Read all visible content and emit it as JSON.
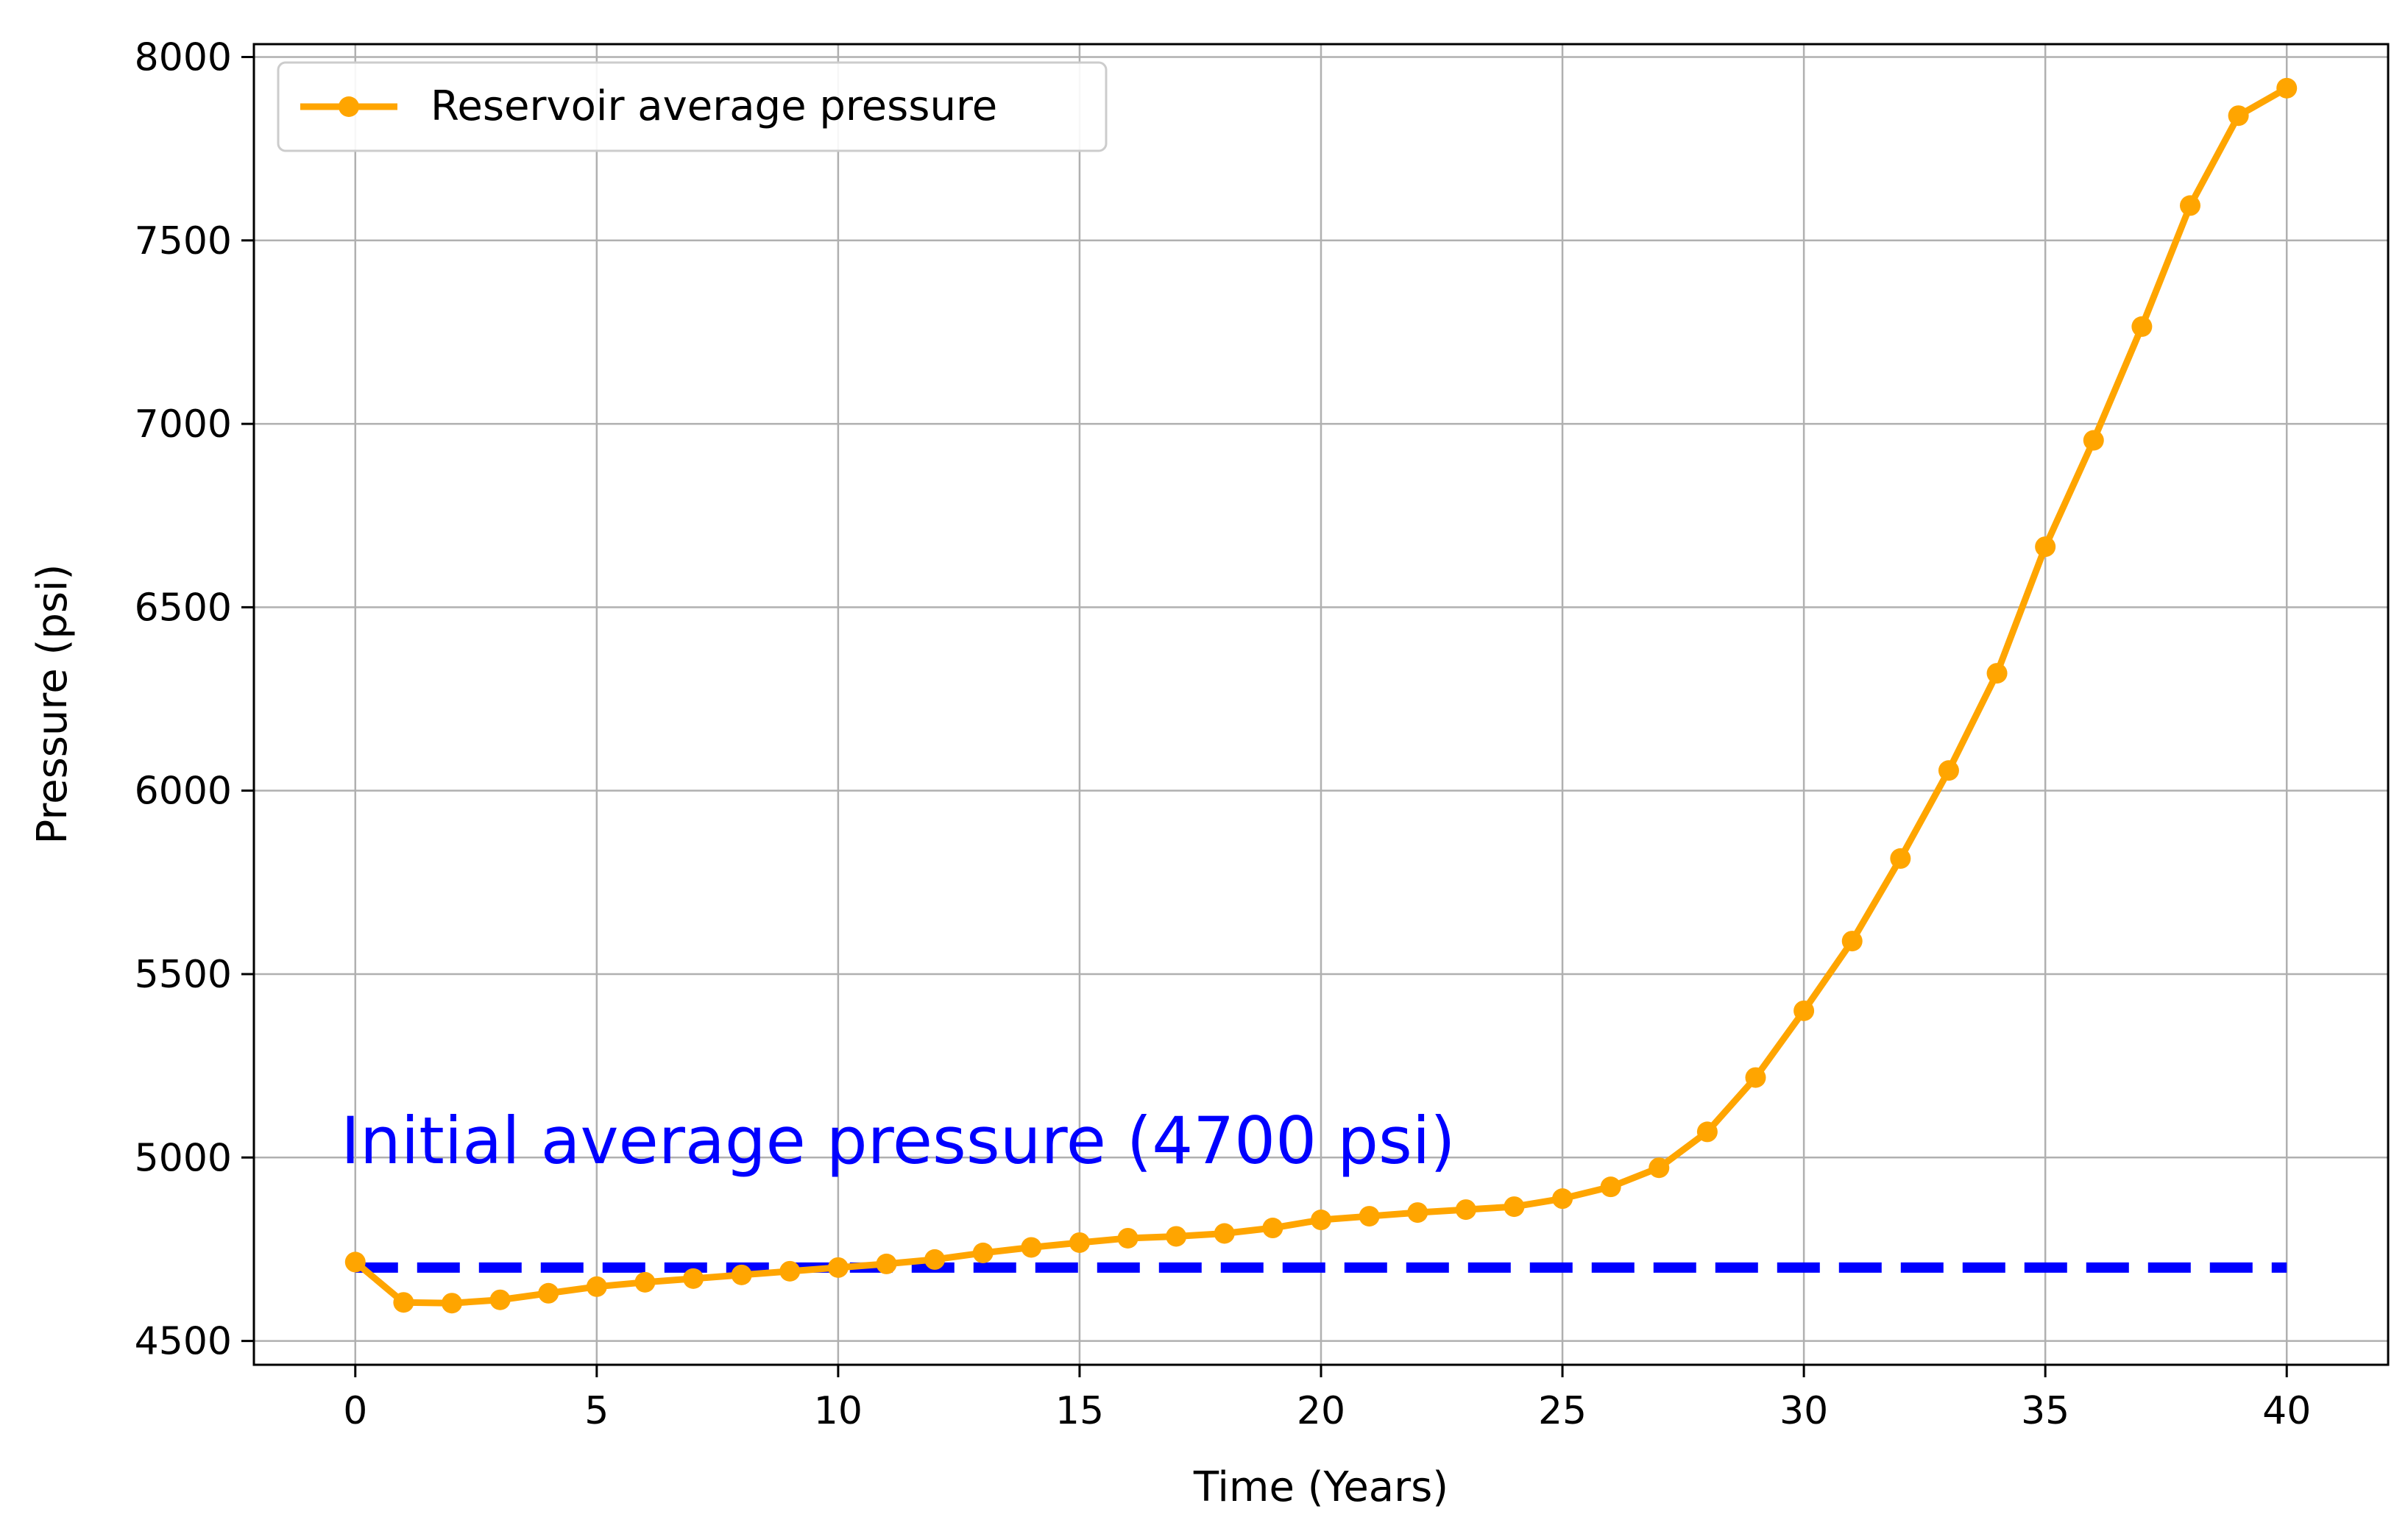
{
  "chart_data": {
    "type": "line",
    "title": "",
    "xlabel": "Time (Years)",
    "ylabel": "Pressure (psi)",
    "xlim": [
      -2.1,
      42.1
    ],
    "ylim": [
      4435,
      8035
    ],
    "xticks": [
      0,
      5,
      10,
      15,
      20,
      25,
      30,
      35,
      40
    ],
    "yticks": [
      4500,
      5000,
      5500,
      6000,
      6500,
      7000,
      7500,
      8000
    ],
    "grid": true,
    "legend_position": "top-left",
    "series": [
      {
        "name": "Reservoir average pressure",
        "color": "#FFA500",
        "marker": "circle",
        "x": [
          0,
          1,
          2,
          3,
          4,
          5,
          6,
          7,
          8,
          9,
          10,
          11,
          12,
          13,
          14,
          15,
          16,
          17,
          18,
          19,
          20,
          21,
          22,
          23,
          24,
          25,
          26,
          27,
          28,
          29,
          30,
          31,
          32,
          33,
          34,
          35,
          36,
          37,
          38,
          39,
          40
        ],
        "values": [
          4715,
          4605,
          4603,
          4612,
          4630,
          4648,
          4660,
          4670,
          4680,
          4690,
          4700,
          4710,
          4722,
          4740,
          4755,
          4768,
          4780,
          4785,
          4793,
          4808,
          4830,
          4840,
          4850,
          4858,
          4866,
          4888,
          4920,
          4972,
          5070,
          5218,
          5400,
          5590,
          5815,
          6055,
          6320,
          6665,
          6955,
          7265,
          7595,
          7840,
          7915
        ]
      },
      {
        "name": "Initial average pressure",
        "color": "#0000FF",
        "style": "dashed",
        "x": [
          0,
          40
        ],
        "values": [
          4700,
          4700
        ]
      }
    ],
    "annotations": [
      {
        "text": "Initial average pressure (4700 psi)",
        "x": -0.3,
        "y": 4985,
        "color": "#0000FF"
      }
    ]
  }
}
